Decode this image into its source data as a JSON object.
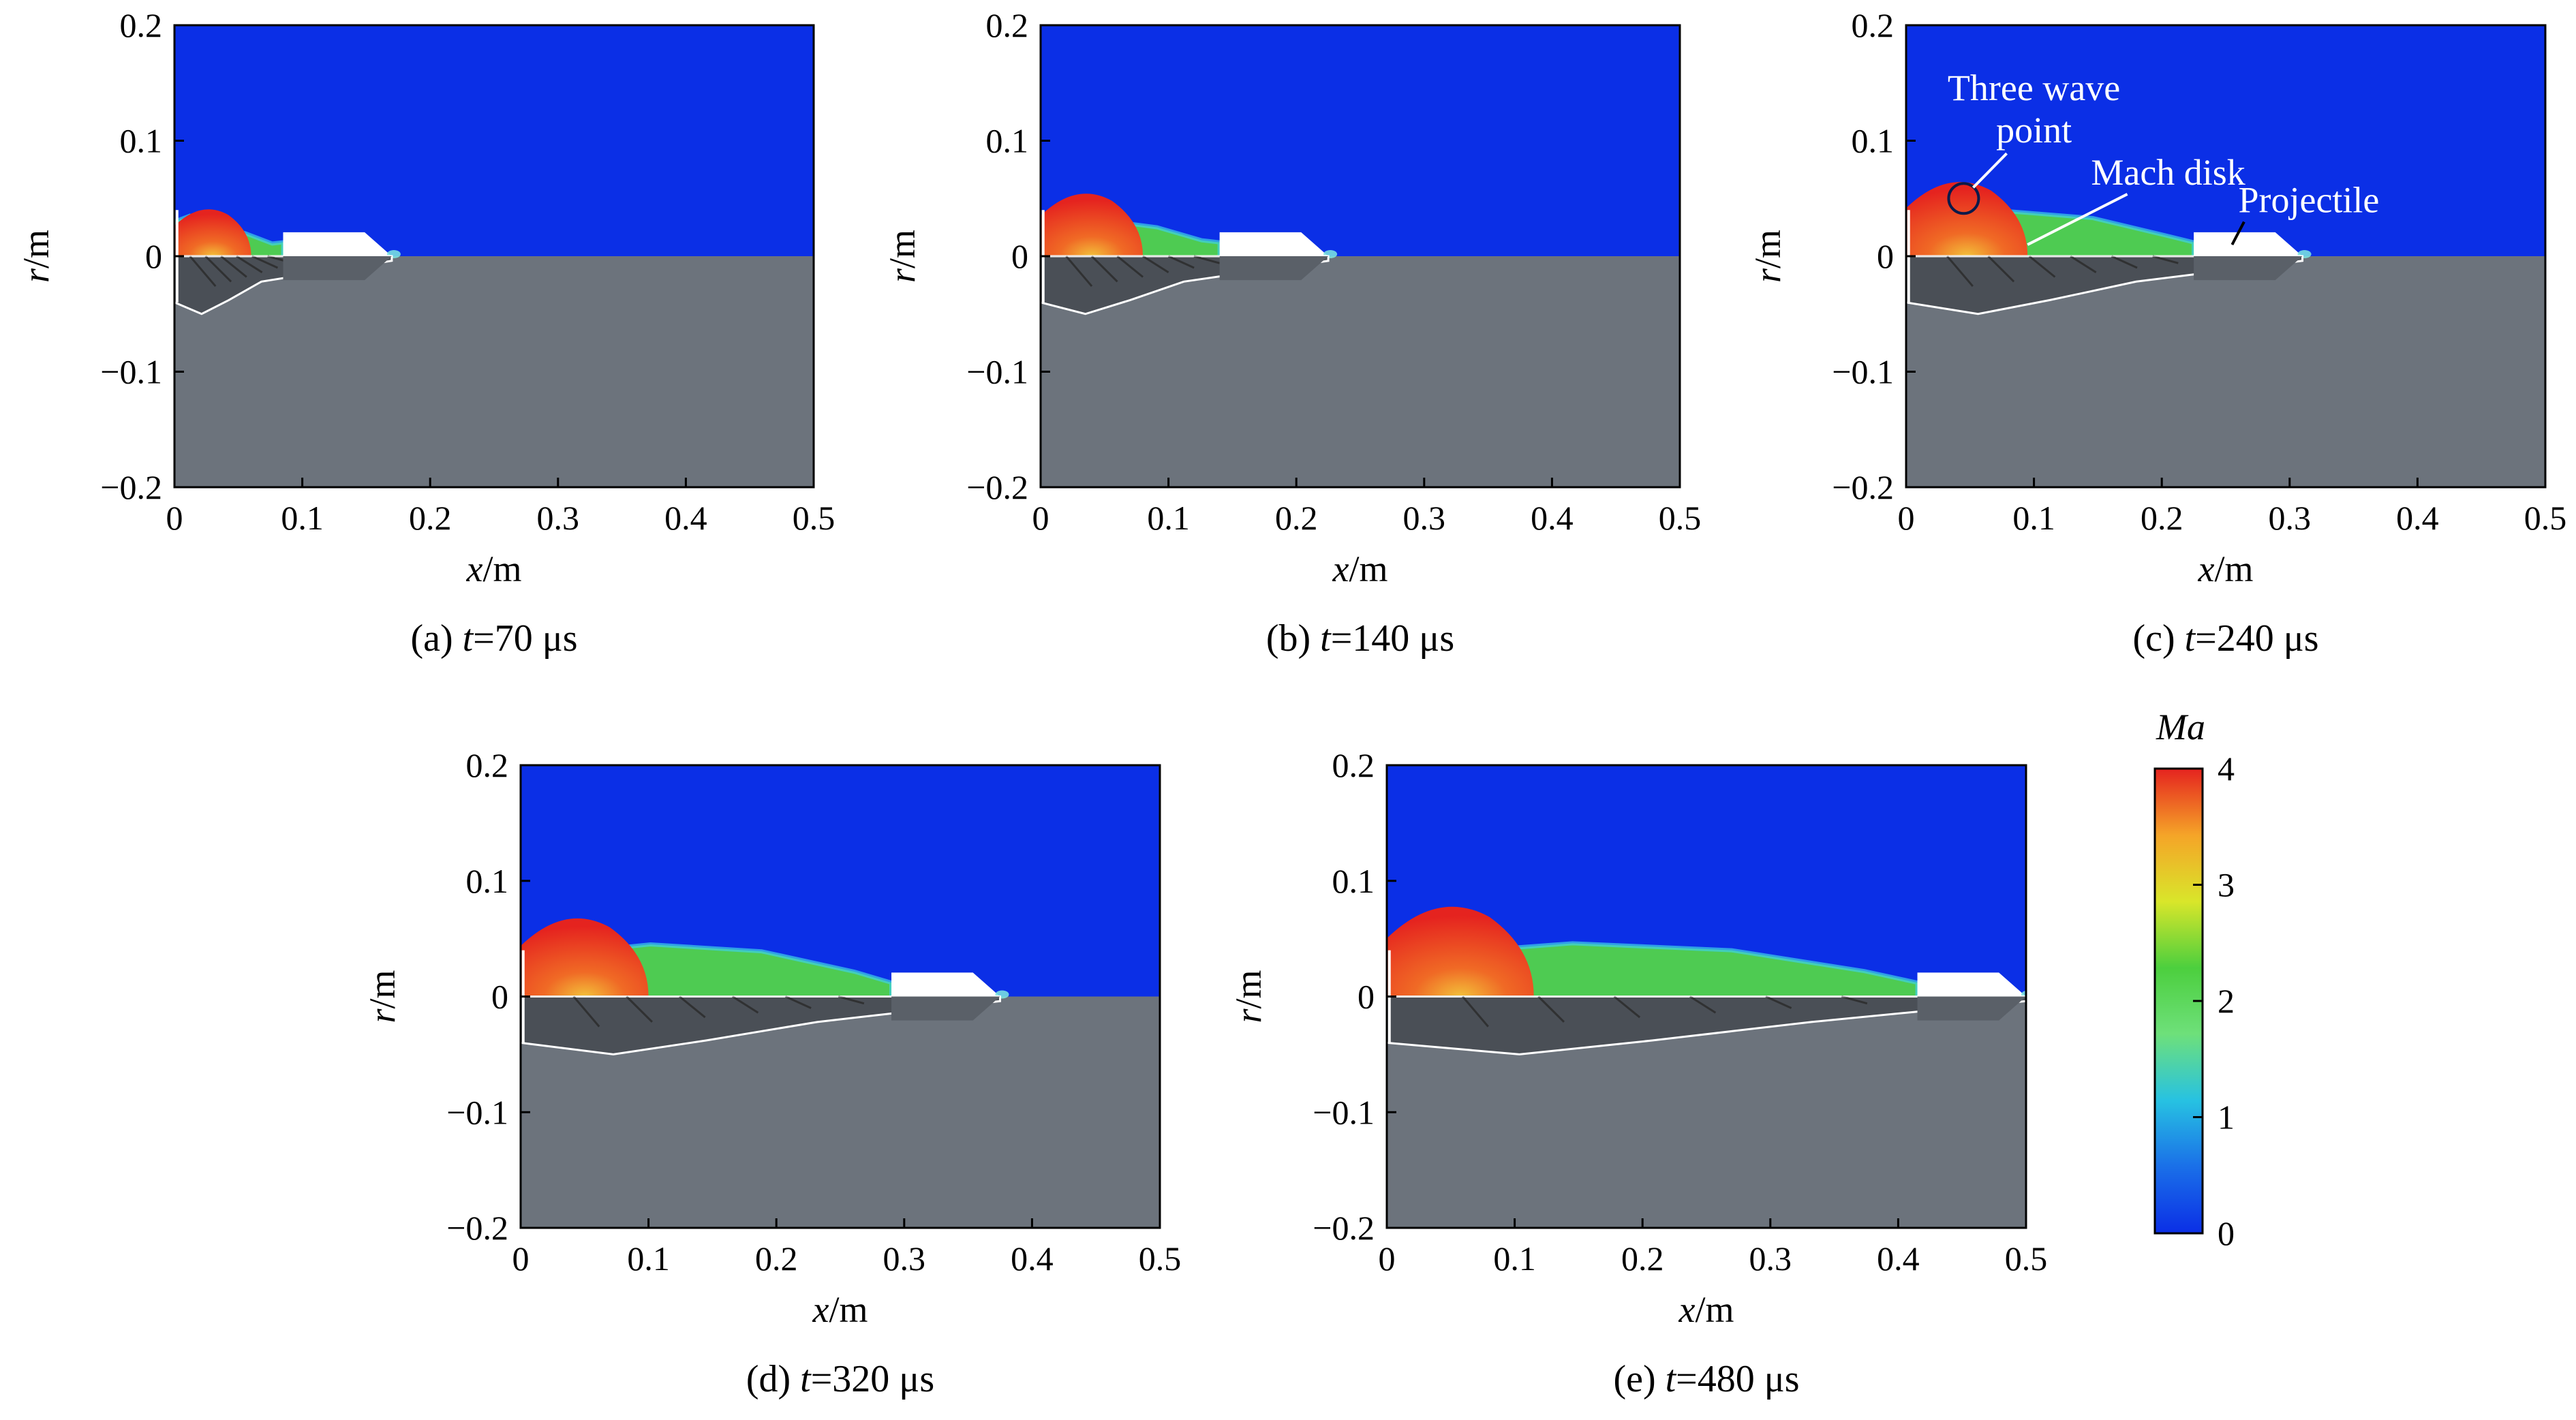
{
  "figure": {
    "colorbar": {
      "label": "Ma",
      "ticks": [
        "0",
        "1",
        "2",
        "3",
        "4"
      ],
      "min": 0,
      "max": 4,
      "colors": [
        "#0b2fe6",
        "#1a6fe8",
        "#27c2e2",
        "#6ee07a",
        "#4ccf3e",
        "#d9e62a",
        "#f5a428",
        "#e5231f"
      ]
    },
    "colors": {
      "air": "#0b2fe6",
      "ground": "#6c737c",
      "projectile": "#ffffff",
      "jet_core": "#e5231f",
      "jet_green": "#52d44a",
      "shock_lines": "#2a2a2a"
    }
  },
  "chart_data": [
    {
      "type": "heatmap",
      "panel": "a",
      "caption_prefix": "(a) ",
      "caption_var": "t",
      "caption_value": "=70 μs",
      "x_ticks": [
        "0",
        "0.1",
        "0.2",
        "0.3",
        "0.4",
        "0.5"
      ],
      "y_ticks": [
        "0.2",
        "0.1",
        "0",
        "−0.1",
        "−0.2"
      ],
      "xlabel_var": "x",
      "xlabel_unit": "/m",
      "ylabel_var": "r",
      "ylabel_unit": "/m",
      "xlim": [
        0,
        0.5
      ],
      "ylim": [
        -0.2,
        0.2
      ],
      "projectile_x": [
        0.085,
        0.17
      ],
      "jet_front_x": 0.085,
      "core_x": [
        0.0,
        0.06
      ],
      "annotations": []
    },
    {
      "type": "heatmap",
      "panel": "b",
      "caption_prefix": "(b) ",
      "caption_var": "t",
      "caption_value": "=140 μs",
      "x_ticks": [
        "0",
        "0.1",
        "0.2",
        "0.3",
        "0.4",
        "0.5"
      ],
      "y_ticks": [
        "0.2",
        "0.1",
        "0",
        "−0.1",
        "−0.2"
      ],
      "xlabel_var": "x",
      "xlabel_unit": "/m",
      "ylabel_var": "r",
      "ylabel_unit": "/m",
      "xlim": [
        0,
        0.5
      ],
      "ylim": [
        -0.2,
        0.2
      ],
      "projectile_x": [
        0.14,
        0.225
      ],
      "jet_front_x": 0.14,
      "core_x": [
        0.0,
        0.08
      ],
      "annotations": []
    },
    {
      "type": "heatmap",
      "panel": "c",
      "caption_prefix": "(c) ",
      "caption_var": "t",
      "caption_value": "=240 μs",
      "x_ticks": [
        "0",
        "0.1",
        "0.2",
        "0.3",
        "0.4",
        "0.5"
      ],
      "y_ticks": [
        "0.2",
        "0.1",
        "0",
        "−0.1",
        "−0.2"
      ],
      "xlabel_var": "x",
      "xlabel_unit": "/m",
      "ylabel_var": "r",
      "ylabel_unit": "/m",
      "xlim": [
        0,
        0.5
      ],
      "ylim": [
        -0.2,
        0.2
      ],
      "projectile_x": [
        0.225,
        0.31
      ],
      "jet_front_x": 0.225,
      "core_x": [
        0.0,
        0.095
      ],
      "annotations": [
        {
          "text_lines": [
            "Three wave",
            "point"
          ],
          "text_x": 0.1,
          "text_y": 0.135,
          "target": [
            0.045,
            0.05
          ]
        },
        {
          "text_lines": [
            "Mach disk"
          ],
          "text_x": 0.205,
          "text_y": 0.062,
          "target": [
            0.095,
            0.01
          ]
        },
        {
          "text_lines": [
            "Projectile"
          ],
          "text_x": 0.315,
          "text_y": 0.038,
          "target": [
            0.255,
            0.01
          ]
        }
      ]
    },
    {
      "type": "heatmap",
      "panel": "d",
      "caption_prefix": "(d) ",
      "caption_var": "t",
      "caption_value": "=320 μs",
      "x_ticks": [
        "0",
        "0.1",
        "0.2",
        "0.3",
        "0.4",
        "0.5"
      ],
      "y_ticks": [
        "0.2",
        "0.1",
        "0",
        "−0.1",
        "−0.2"
      ],
      "xlabel_var": "x",
      "xlabel_unit": "/m",
      "ylabel_var": "r",
      "ylabel_unit": "/m",
      "xlim": [
        0,
        0.5
      ],
      "ylim": [
        -0.2,
        0.2
      ],
      "projectile_x": [
        0.29,
        0.375
      ],
      "jet_front_x": 0.29,
      "core_x": [
        0.0,
        0.1
      ],
      "annotations": []
    },
    {
      "type": "heatmap",
      "panel": "e",
      "caption_prefix": "(e) ",
      "caption_var": "t",
      "caption_value": "=480 μs",
      "x_ticks": [
        "0",
        "0.1",
        "0.2",
        "0.3",
        "0.4",
        "0.5"
      ],
      "y_ticks": [
        "0.2",
        "0.1",
        "0",
        "−0.1",
        "−0.2"
      ],
      "xlabel_var": "x",
      "xlabel_unit": "/m",
      "ylabel_var": "r",
      "ylabel_unit": "/m",
      "xlim": [
        0,
        0.5
      ],
      "ylim": [
        -0.2,
        0.2
      ],
      "projectile_x": [
        0.415,
        0.5
      ],
      "jet_front_x": 0.415,
      "core_x": [
        0.0,
        0.115
      ],
      "annotations": []
    }
  ]
}
